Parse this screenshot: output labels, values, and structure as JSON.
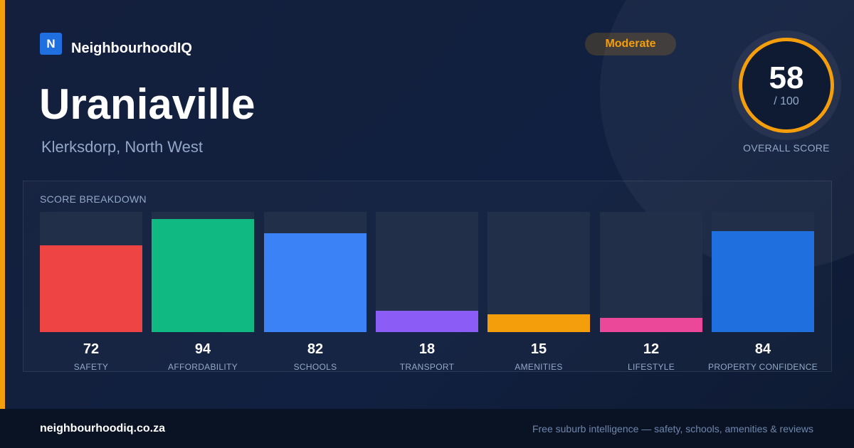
{
  "brand": {
    "logo_letter": "N",
    "name": "NeighbourhoodIQ"
  },
  "suburb": {
    "name": "Uraniaville",
    "location": "Klerksdorp, North West"
  },
  "badge": {
    "label": "Moderate",
    "color": "#f59e0b"
  },
  "overall": {
    "score": "58",
    "max_label": "/ 100",
    "caption": "OVERALL SCORE"
  },
  "breakdown": {
    "heading": "SCORE BREAKDOWN",
    "max": 100,
    "items": [
      {
        "label": "SAFETY",
        "value": 72,
        "color": "#ef4444"
      },
      {
        "label": "AFFORDABILITY",
        "value": 94,
        "color": "#10b981"
      },
      {
        "label": "SCHOOLS",
        "value": 82,
        "color": "#3b82f6"
      },
      {
        "label": "TRANSPORT",
        "value": 18,
        "color": "#8b5cf6"
      },
      {
        "label": "AMENITIES",
        "value": 15,
        "color": "#f59e0b"
      },
      {
        "label": "LIFESTYLE",
        "value": 12,
        "color": "#ec4899"
      },
      {
        "label": "PROPERTY CONFIDENCE",
        "value": 84,
        "color": "#1f6fde"
      }
    ]
  },
  "footer": {
    "domain": "neighbourhoodiq.co.za",
    "tagline": "Free suburb intelligence — safety, schools, amenities & reviews"
  }
}
